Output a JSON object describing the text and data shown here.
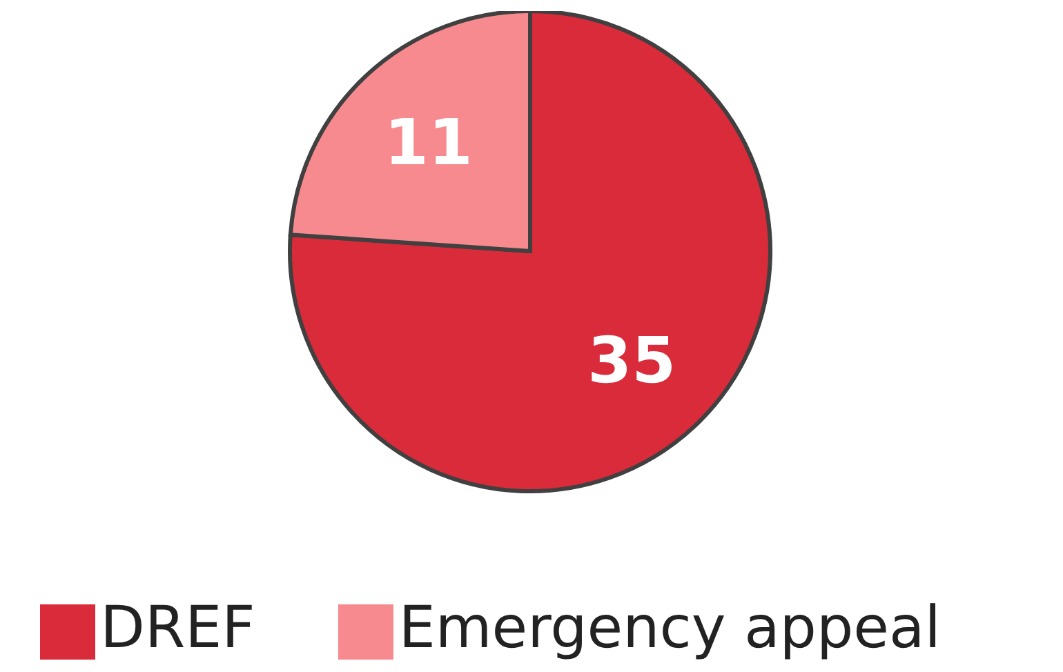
{
  "chart_data": {
    "type": "pie",
    "categories": [
      "DREF",
      "Emergency appeal"
    ],
    "values": [
      35,
      11
    ],
    "colors": [
      "#d92b3a",
      "#f78a8f"
    ],
    "data_labels": true,
    "legend": "bottom"
  }
}
